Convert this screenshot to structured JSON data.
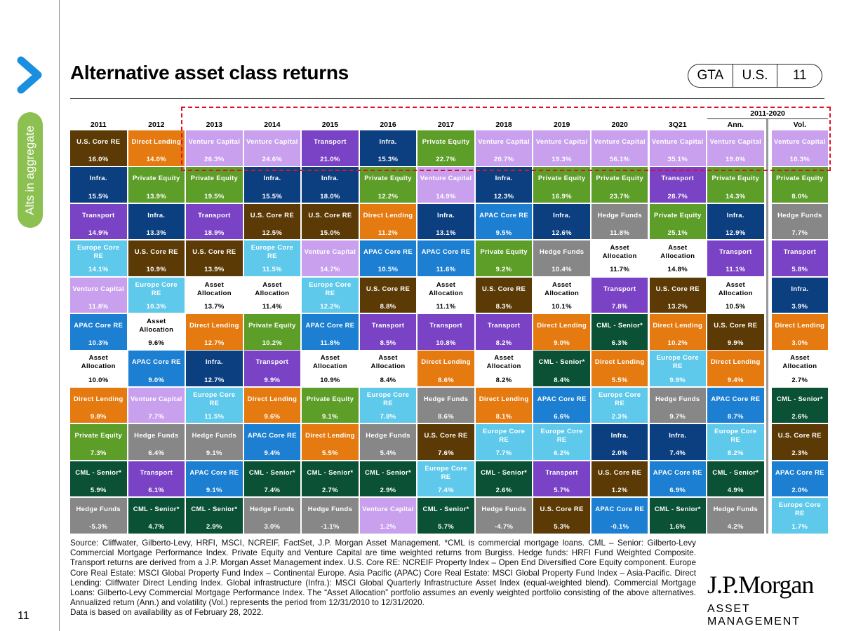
{
  "header": {
    "title": "Alternative asset class returns",
    "pill": [
      "GTA",
      "U.S.",
      "11"
    ]
  },
  "sidebar": {
    "tab_label": "Alts in aggregate"
  },
  "footer": {
    "page_number": "11",
    "source": "Source: Cliffwater, Gilberto-Levy, HRFI, MSCI, NCREIF, FactSet, J.P. Morgan Asset Management. *CML is commercial mortgage loans. CML – Senior: Gilberto-Levy Commercial Mortgage Performance Index. Private Equity and Venture Capital are time weighted returns from Burgiss. Hedge funds: HRFI Fund Weighted Composite. Transport returns are derived from a J.P. Morgan Asset Management index. U.S. Core RE: NCREIF Property Index – Open End Diversified Core Equity component. Europe Core Real Estate: MSCI Global Property Fund Index – Continental Europe. Asia Pacific (APAC) Core Real Estate: MSCI Global Property Fund Index – Asia-Pacific. Direct Lending: Cliffwater Direct Lending Index. Global infrastructure (Infra.): MSCI Global Quarterly Infrastructure Asset Index (equal-weighted blend). Commercial Mortgage Loans: Gilberto-Levy Commercial Mortgage Performance Index. The “Asset Allocation” portfolio assumes an evenly weighted portfolio consisting of the above alternatives. Annualized return (Ann.) and volatility (Vol.) represents the period from 12/31/2010 to 12/31/2020.",
    "note": "Data is based on availability as of February 28, 2022.",
    "logo_line1": "J.P.Morgan",
    "logo_line2": "ASSET MANAGEMENT"
  },
  "colors": {
    "U.S. Core RE": "#5c3a06",
    "Direct Lending": "#e57a10",
    "Venture Capital": "#c9a0ee",
    "Transport": "#7a42c4",
    "Infra.": "#0b3f80",
    "Private Equity": "#5c9e28",
    "APAC Core RE": "#1c7fd2",
    "Europe Core RE": "#5ec9ea",
    "Asset Allocation": "#ffffff",
    "CML - Senior*": "#0a5135",
    "Hedge Funds": "#878787",
    "highlight": "#e0102a"
  },
  "chart_data": {
    "type": "table",
    "group_label": "2011-2020",
    "columns": [
      "2011",
      "2012",
      "2013",
      "2014",
      "2015",
      "2016",
      "2017",
      "2018",
      "2019",
      "2020",
      "3Q21",
      "Ann.",
      "Vol."
    ],
    "rows": [
      [
        [
          "U.S. Core RE",
          "16.0%"
        ],
        [
          "Direct Lending",
          "14.0%"
        ],
        [
          "Venture Capital",
          "26.3%"
        ],
        [
          "Venture Capital",
          "24.6%"
        ],
        [
          "Transport",
          "21.0%"
        ],
        [
          "Infra.",
          "15.3%"
        ],
        [
          "Private Equity",
          "22.7%"
        ],
        [
          "Venture Capital",
          "20.7%"
        ],
        [
          "Venture Capital",
          "19.3%"
        ],
        [
          "Venture Capital",
          "56.1%"
        ],
        [
          "Venture Capital",
          "35.1%"
        ],
        [
          "Venture Capital",
          "19.0%"
        ],
        [
          "Venture Capital",
          "10.3%"
        ]
      ],
      [
        [
          "Infra.",
          "15.5%"
        ],
        [
          "Private Equity",
          "13.9%"
        ],
        [
          "Private Equity",
          "19.5%"
        ],
        [
          "Infra.",
          "15.5%"
        ],
        [
          "Infra.",
          "18.0%"
        ],
        [
          "Private Equity",
          "12.2%"
        ],
        [
          "Venture Capital",
          "14.9%"
        ],
        [
          "Infra.",
          "12.3%"
        ],
        [
          "Private Equity",
          "16.9%"
        ],
        [
          "Private Equity",
          "23.7%"
        ],
        [
          "Transport",
          "28.7%"
        ],
        [
          "Private Equity",
          "14.3%"
        ],
        [
          "Private Equity",
          "8.0%"
        ]
      ],
      [
        [
          "Transport",
          "14.9%"
        ],
        [
          "Infra.",
          "13.3%"
        ],
        [
          "Transport",
          "18.9%"
        ],
        [
          "U.S. Core RE",
          "12.5%"
        ],
        [
          "U.S. Core RE",
          "15.0%"
        ],
        [
          "Direct Lending",
          "11.2%"
        ],
        [
          "Infra.",
          "13.1%"
        ],
        [
          "APAC Core RE",
          "9.5%"
        ],
        [
          "Infra.",
          "12.6%"
        ],
        [
          "Hedge Funds",
          "11.8%"
        ],
        [
          "Private Equity",
          "25.1%"
        ],
        [
          "Infra.",
          "12.9%"
        ],
        [
          "Hedge Funds",
          "7.7%"
        ]
      ],
      [
        [
          "Europe Core RE",
          "14.1%"
        ],
        [
          "U.S. Core RE",
          "10.9%"
        ],
        [
          "U.S. Core RE",
          "13.9%"
        ],
        [
          "Europe Core RE",
          "11.5%"
        ],
        [
          "Venture Capital",
          "14.7%"
        ],
        [
          "APAC Core RE",
          "10.5%"
        ],
        [
          "APAC Core RE",
          "11.6%"
        ],
        [
          "Private Equity",
          "9.2%"
        ],
        [
          "Hedge Funds",
          "10.4%"
        ],
        [
          "Asset Allocation",
          "11.7%"
        ],
        [
          "Asset Allocation",
          "14.8%"
        ],
        [
          "Transport",
          "11.1%"
        ],
        [
          "Transport",
          "5.8%"
        ]
      ],
      [
        [
          "Venture Capital",
          "11.8%"
        ],
        [
          "Europe Core RE",
          "10.3%"
        ],
        [
          "Asset Allocation",
          "13.7%"
        ],
        [
          "Asset Allocation",
          "11.4%"
        ],
        [
          "Europe Core RE",
          "12.2%"
        ],
        [
          "U.S. Core RE",
          "8.8%"
        ],
        [
          "Asset Allocation",
          "11.1%"
        ],
        [
          "U.S. Core RE",
          "8.3%"
        ],
        [
          "Asset Allocation",
          "10.1%"
        ],
        [
          "Transport",
          "7.8%"
        ],
        [
          "U.S. Core RE",
          "13.2%"
        ],
        [
          "Asset Allocation",
          "10.5%"
        ],
        [
          "Infra.",
          "3.9%"
        ]
      ],
      [
        [
          "APAC Core RE",
          "10.3%"
        ],
        [
          "Asset Allocation",
          "9.6%"
        ],
        [
          "Direct Lending",
          "12.7%"
        ],
        [
          "Private Equity",
          "10.2%"
        ],
        [
          "APAC Core RE",
          "11.8%"
        ],
        [
          "Transport",
          "8.5%"
        ],
        [
          "Transport",
          "10.8%"
        ],
        [
          "Transport",
          "8.2%"
        ],
        [
          "Direct Lending",
          "9.0%"
        ],
        [
          "CML - Senior*",
          "6.3%"
        ],
        [
          "Direct Lending",
          "10.2%"
        ],
        [
          "U.S. Core RE",
          "9.9%"
        ],
        [
          "Direct Lending",
          "3.0%"
        ]
      ],
      [
        [
          "Asset Allocation",
          "10.0%"
        ],
        [
          "APAC Core RE",
          "9.0%"
        ],
        [
          "Infra.",
          "12.7%"
        ],
        [
          "Transport",
          "9.9%"
        ],
        [
          "Asset Allocation",
          "10.9%"
        ],
        [
          "Asset Allocation",
          "8.4%"
        ],
        [
          "Direct Lending",
          "8.6%"
        ],
        [
          "Asset Allocation",
          "8.2%"
        ],
        [
          "CML - Senior*",
          "8.4%"
        ],
        [
          "Direct Lending",
          "5.5%"
        ],
        [
          "Europe Core RE",
          "9.9%"
        ],
        [
          "Direct Lending",
          "9.4%"
        ],
        [
          "Asset Allocation",
          "2.7%"
        ]
      ],
      [
        [
          "Direct Lending",
          "9.8%"
        ],
        [
          "Venture Capital",
          "7.7%"
        ],
        [
          "Europe Core RE",
          "11.5%"
        ],
        [
          "Direct Lending",
          "9.6%"
        ],
        [
          "Private Equity",
          "9.1%"
        ],
        [
          "Europe Core RE",
          "7.8%"
        ],
        [
          "Hedge Funds",
          "8.6%"
        ],
        [
          "Direct Lending",
          "8.1%"
        ],
        [
          "APAC Core RE",
          "6.6%"
        ],
        [
          "Europe Core RE",
          "2.3%"
        ],
        [
          "Hedge Funds",
          "9.7%"
        ],
        [
          "APAC Core RE",
          "8.7%"
        ],
        [
          "CML - Senior*",
          "2.6%"
        ]
      ],
      [
        [
          "Private Equity",
          "7.3%"
        ],
        [
          "Hedge Funds",
          "6.4%"
        ],
        [
          "Hedge Funds",
          "9.1%"
        ],
        [
          "APAC Core RE",
          "9.4%"
        ],
        [
          "Direct Lending",
          "5.5%"
        ],
        [
          "Hedge Funds",
          "5.4%"
        ],
        [
          "U.S. Core RE",
          "7.6%"
        ],
        [
          "Europe Core RE",
          "7.7%"
        ],
        [
          "Europe Core RE",
          "6.2%"
        ],
        [
          "Infra.",
          "2.0%"
        ],
        [
          "Infra.",
          "7.4%"
        ],
        [
          "Europe Core RE",
          "8.2%"
        ],
        [
          "U.S. Core RE",
          "2.3%"
        ]
      ],
      [
        [
          "CML - Senior*",
          "5.9%"
        ],
        [
          "Transport",
          "6.1%"
        ],
        [
          "APAC Core RE",
          "9.1%"
        ],
        [
          "CML - Senior*",
          "7.4%"
        ],
        [
          "CML - Senior*",
          "2.7%"
        ],
        [
          "CML - Senior*",
          "2.9%"
        ],
        [
          "Europe Core RE",
          "7.4%"
        ],
        [
          "CML - Senior*",
          "2.6%"
        ],
        [
          "Transport",
          "5.7%"
        ],
        [
          "U.S. Core RE",
          "1.2%"
        ],
        [
          "APAC Core RE",
          "6.9%"
        ],
        [
          "CML - Senior*",
          "4.9%"
        ],
        [
          "APAC Core RE",
          "2.0%"
        ]
      ],
      [
        [
          "Hedge Funds",
          "-5.3%"
        ],
        [
          "CML - Senior*",
          "4.7%"
        ],
        [
          "CML - Senior*",
          "2.9%"
        ],
        [
          "Hedge Funds",
          "3.0%"
        ],
        [
          "Hedge Funds",
          "-1.1%"
        ],
        [
          "Venture Capital",
          "1.2%"
        ],
        [
          "CML - Senior*",
          "5.7%"
        ],
        [
          "Hedge Funds",
          "-4.7%"
        ],
        [
          "U.S. Core RE",
          "5.3%"
        ],
        [
          "APAC Core RE",
          "-0.1%"
        ],
        [
          "CML - Senior*",
          "1.6%"
        ],
        [
          "Hedge Funds",
          "4.2%"
        ],
        [
          "Europe Core RE",
          "1.7%"
        ]
      ]
    ]
  }
}
